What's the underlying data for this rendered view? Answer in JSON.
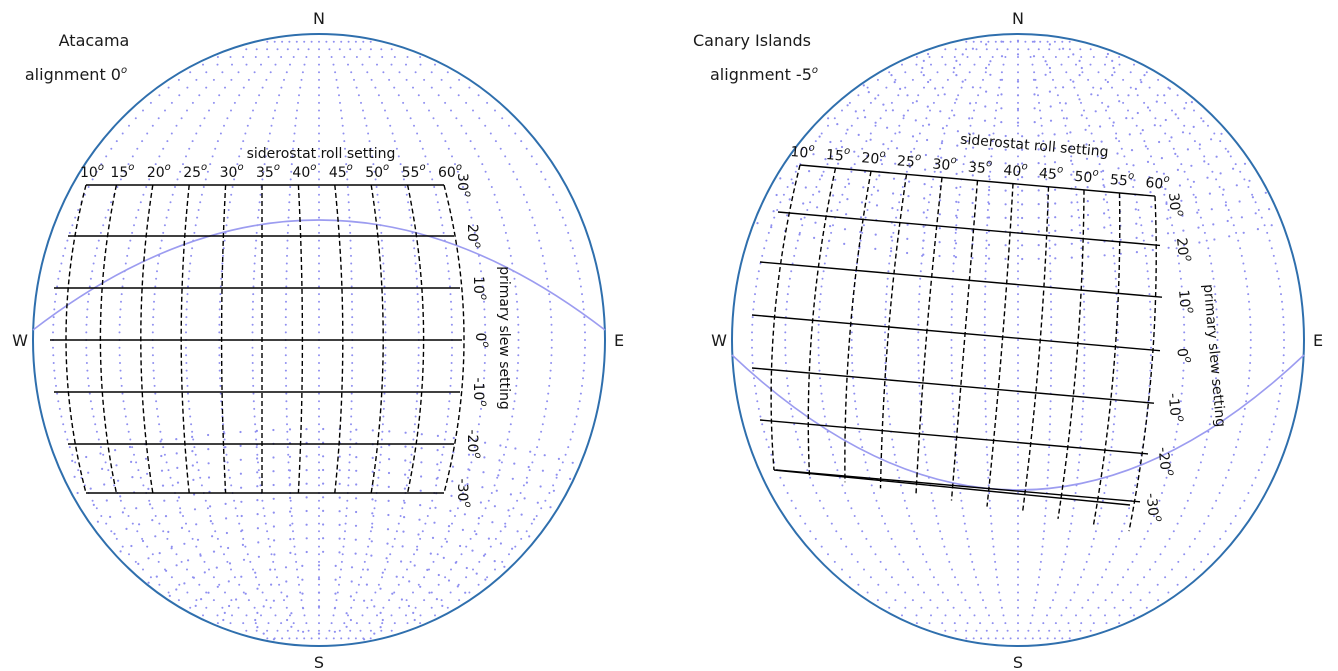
{
  "panels": [
    {
      "site": "Atacama",
      "alignment_label": "alignment  0",
      "alignment_deg": 0,
      "compass": {
        "north": "N",
        "south": "S",
        "west": "W",
        "east": "E"
      },
      "roll_axis_title": "siderostat roll setting",
      "slew_axis_title": "primary slew setting",
      "roll_ticks": [
        "10",
        "15",
        "20",
        "25",
        "30",
        "35",
        "40",
        "45",
        "50",
        "55",
        "60"
      ],
      "slew_ticks": [
        "30",
        "20",
        "10",
        "0",
        "-10",
        "-20",
        "-30"
      ]
    },
    {
      "site": "Canary Islands",
      "alignment_label": "alignment -5",
      "alignment_deg": -5,
      "compass": {
        "north": "N",
        "south": "S",
        "west": "W",
        "east": "E"
      },
      "roll_axis_title": "siderostat roll setting",
      "slew_axis_title": "primary slew setting",
      "roll_ticks": [
        "10",
        "15",
        "20",
        "25",
        "30",
        "35",
        "40",
        "45",
        "50",
        "55",
        "60"
      ],
      "slew_ticks": [
        "30",
        "20",
        "10",
        "0",
        "-10",
        "-20",
        "-30"
      ]
    }
  ],
  "degree_symbol": "o",
  "colors": {
    "outline": "#2f6fad",
    "grid_dots": "#8f8ff0",
    "horizon": "#9c9cf0",
    "grid_lines": "#000000"
  }
}
